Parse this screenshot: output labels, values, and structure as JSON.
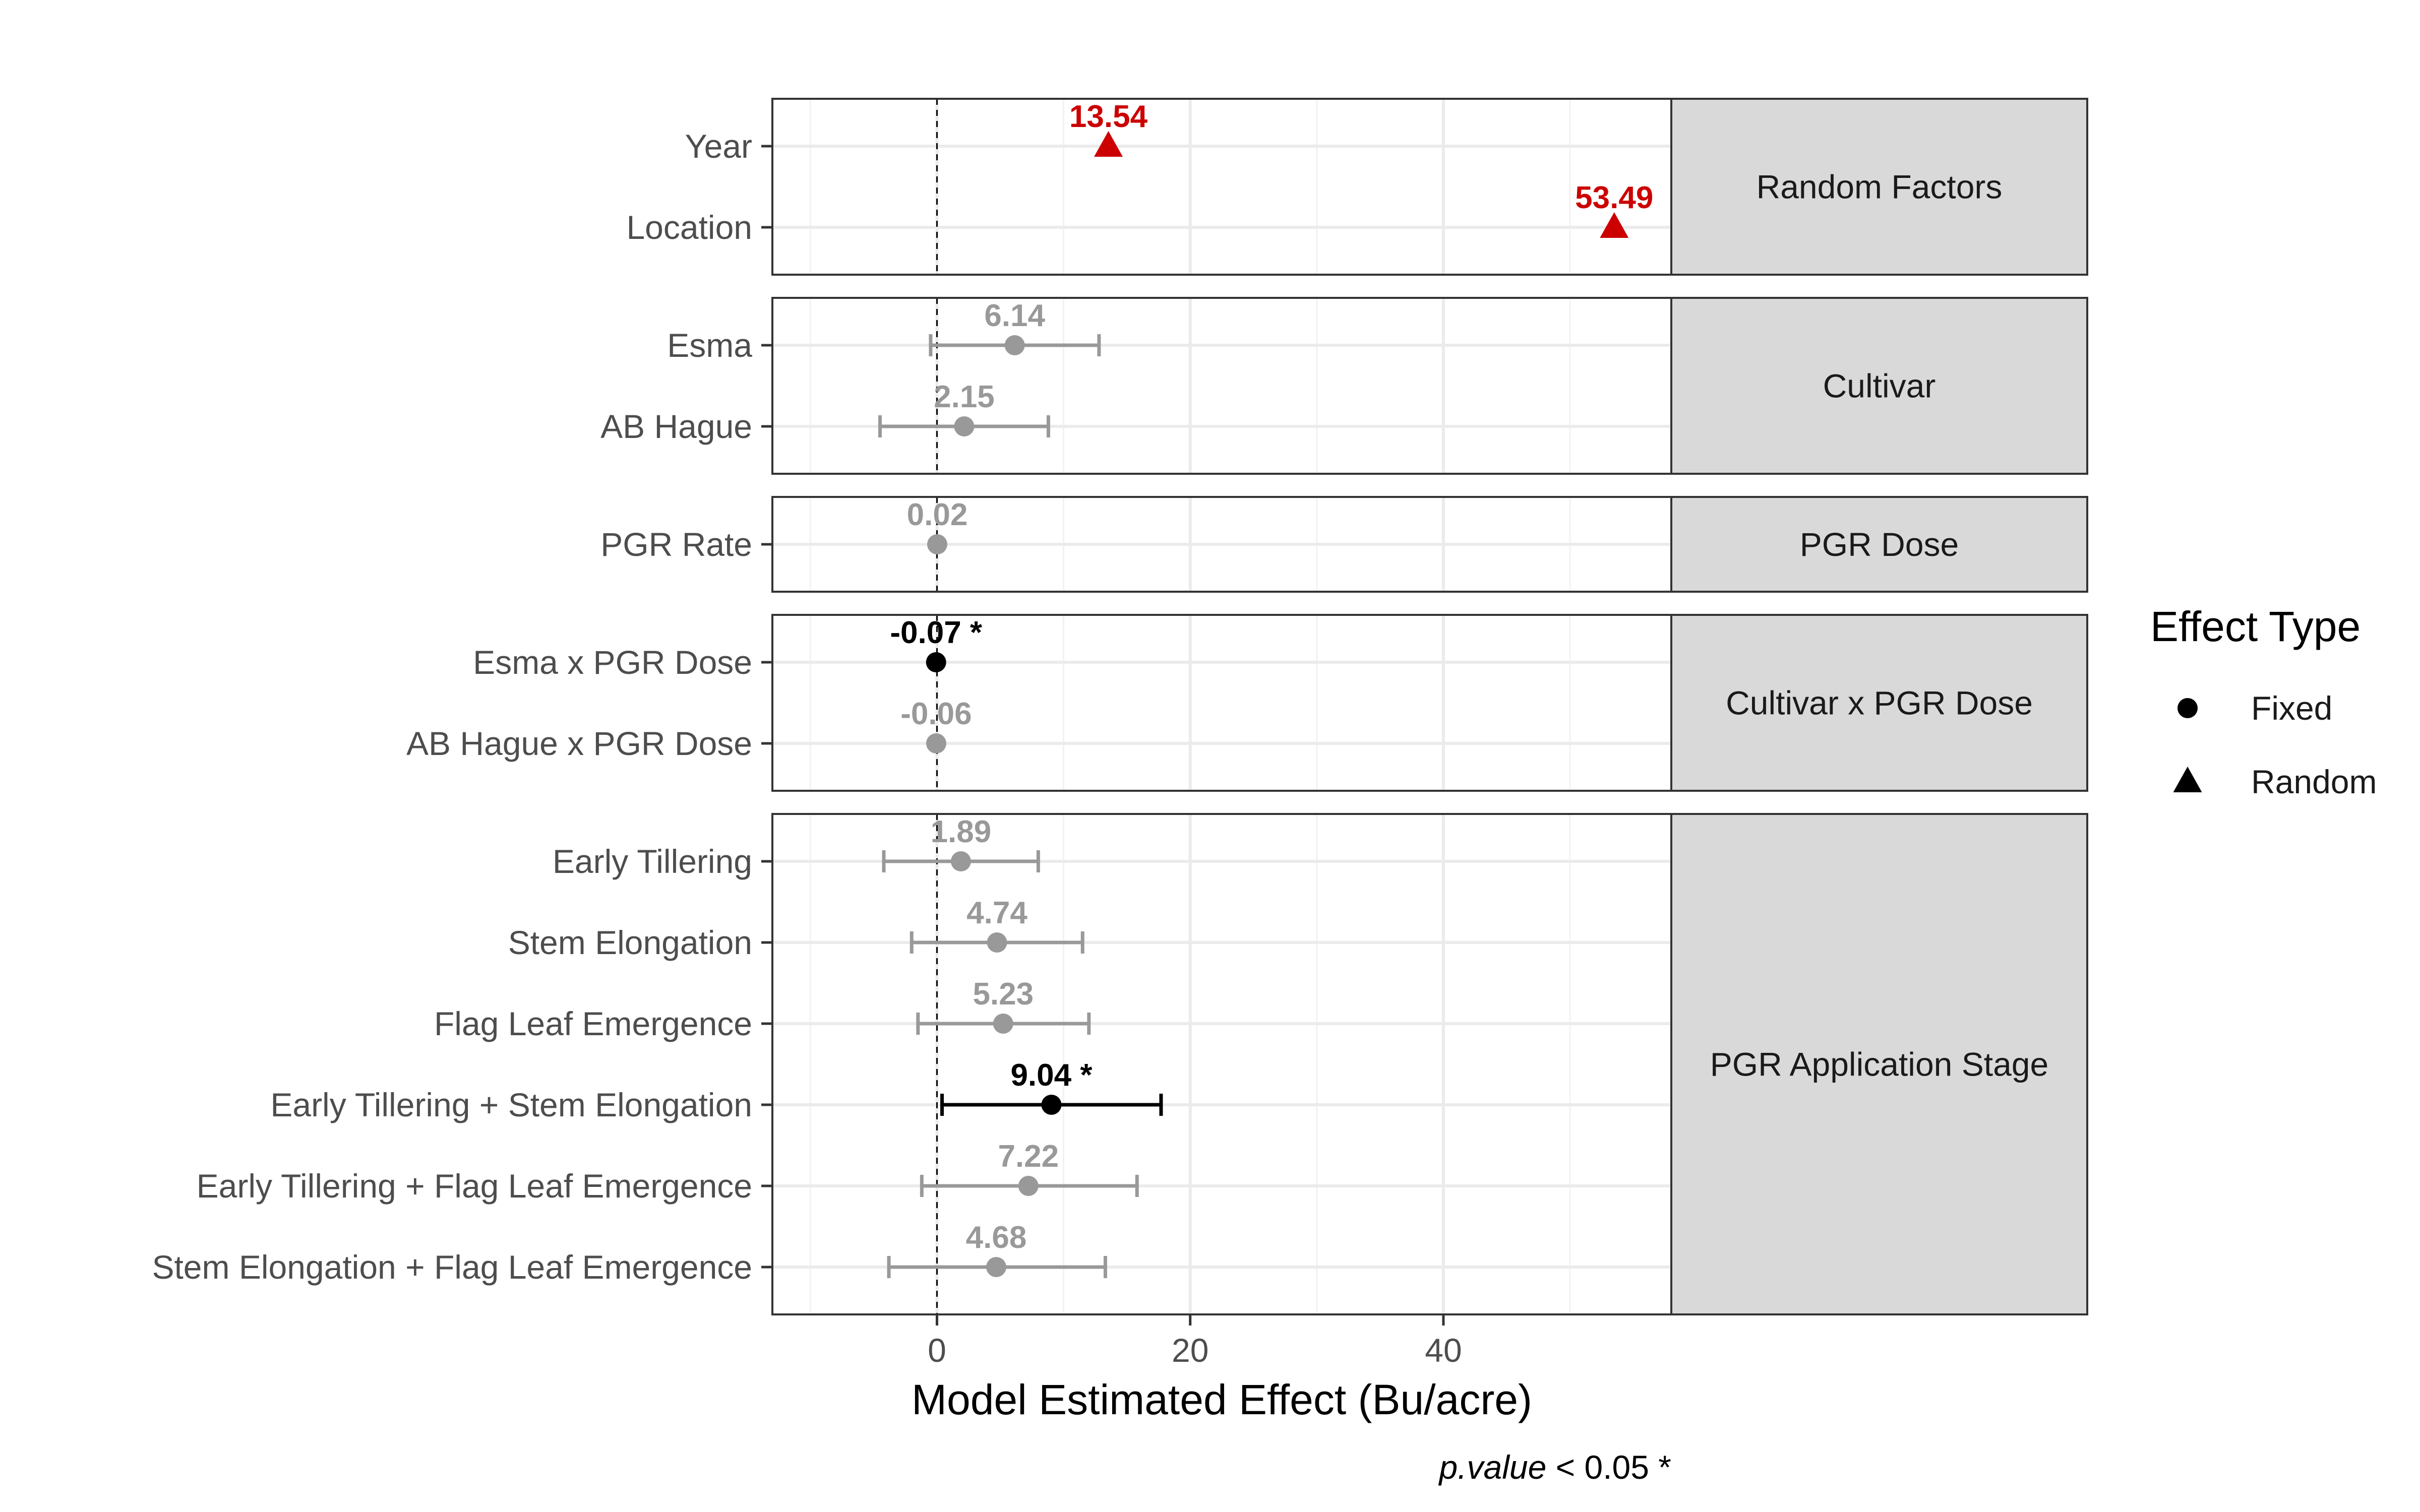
{
  "chart_data": {
    "type": "scatter",
    "subtype": "forest-plot-with-error-bars",
    "title": "",
    "xlabel": "Model Estimated Effect (Bu/acre)",
    "ylabel": "",
    "xlim": [
      -13,
      58
    ],
    "x_ticks": [
      0,
      20,
      40
    ],
    "x_tick_labels": [
      "0",
      "20",
      "40"
    ],
    "reference_line": {
      "x": 0,
      "style": "dashed"
    },
    "grid": true,
    "legend": {
      "title": "Effect Type",
      "placement": "right",
      "entries": [
        {
          "label": "Fixed",
          "shape": "circle"
        },
        {
          "label": "Random",
          "shape": "triangle"
        }
      ]
    },
    "caption": {
      "italic": "p.value",
      "rest": "< 0.05 *"
    },
    "colors": {
      "significant": "#000000",
      "not_significant": "#999999",
      "random": "#cc0000"
    },
    "facets": [
      {
        "name": "Random Factors",
        "rows": [
          {
            "term": "Year",
            "estimate": 13.54,
            "lower": null,
            "upper": null,
            "effect_type": "Random",
            "significant": false,
            "label": "13.54"
          },
          {
            "term": "Location",
            "estimate": 53.49,
            "lower": null,
            "upper": null,
            "effect_type": "Random",
            "significant": false,
            "label": "53.49"
          }
        ]
      },
      {
        "name": "Cultivar",
        "rows": [
          {
            "term": "Esma",
            "estimate": 6.14,
            "lower": -0.5,
            "upper": 12.8,
            "effect_type": "Fixed",
            "significant": false,
            "label": "6.14"
          },
          {
            "term": "AB Hague",
            "estimate": 2.15,
            "lower": -4.5,
            "upper": 8.8,
            "effect_type": "Fixed",
            "significant": false,
            "label": "2.15"
          }
        ]
      },
      {
        "name": "PGR Dose",
        "rows": [
          {
            "term": "PGR Rate",
            "estimate": 0.02,
            "lower": null,
            "upper": null,
            "effect_type": "Fixed",
            "significant": false,
            "label": "0.02"
          }
        ]
      },
      {
        "name": "Cultivar x PGR Dose",
        "rows": [
          {
            "term": "Esma x PGR Dose",
            "estimate": -0.07,
            "lower": null,
            "upper": null,
            "effect_type": "Fixed",
            "significant": true,
            "label": "-0.07 *"
          },
          {
            "term": "AB Hague x PGR Dose",
            "estimate": -0.06,
            "lower": null,
            "upper": null,
            "effect_type": "Fixed",
            "significant": false,
            "label": "-0.06"
          }
        ]
      },
      {
        "name": "PGR Application Stage",
        "rows": [
          {
            "term": "Early Tillering",
            "estimate": 1.89,
            "lower": -4.2,
            "upper": 8.0,
            "effect_type": "Fixed",
            "significant": false,
            "label": "1.89"
          },
          {
            "term": "Stem Elongation",
            "estimate": 4.74,
            "lower": -2.0,
            "upper": 11.5,
            "effect_type": "Fixed",
            "significant": false,
            "label": "4.74"
          },
          {
            "term": "Flag Leaf Emergence",
            "estimate": 5.23,
            "lower": -1.5,
            "upper": 12.0,
            "effect_type": "Fixed",
            "significant": false,
            "label": "5.23"
          },
          {
            "term": "Early Tillering + Stem Elongation",
            "estimate": 9.04,
            "lower": 0.4,
            "upper": 17.7,
            "effect_type": "Fixed",
            "significant": true,
            "label": "9.04 *"
          },
          {
            "term": "Early Tillering + Flag Leaf Emergence",
            "estimate": 7.22,
            "lower": -1.2,
            "upper": 15.8,
            "effect_type": "Fixed",
            "significant": false,
            "label": "7.22"
          },
          {
            "term": "Stem Elongation + Flag Leaf Emergence",
            "estimate": 4.68,
            "lower": -3.8,
            "upper": 13.3,
            "effect_type": "Fixed",
            "significant": false,
            "label": "4.68"
          }
        ]
      }
    ]
  }
}
